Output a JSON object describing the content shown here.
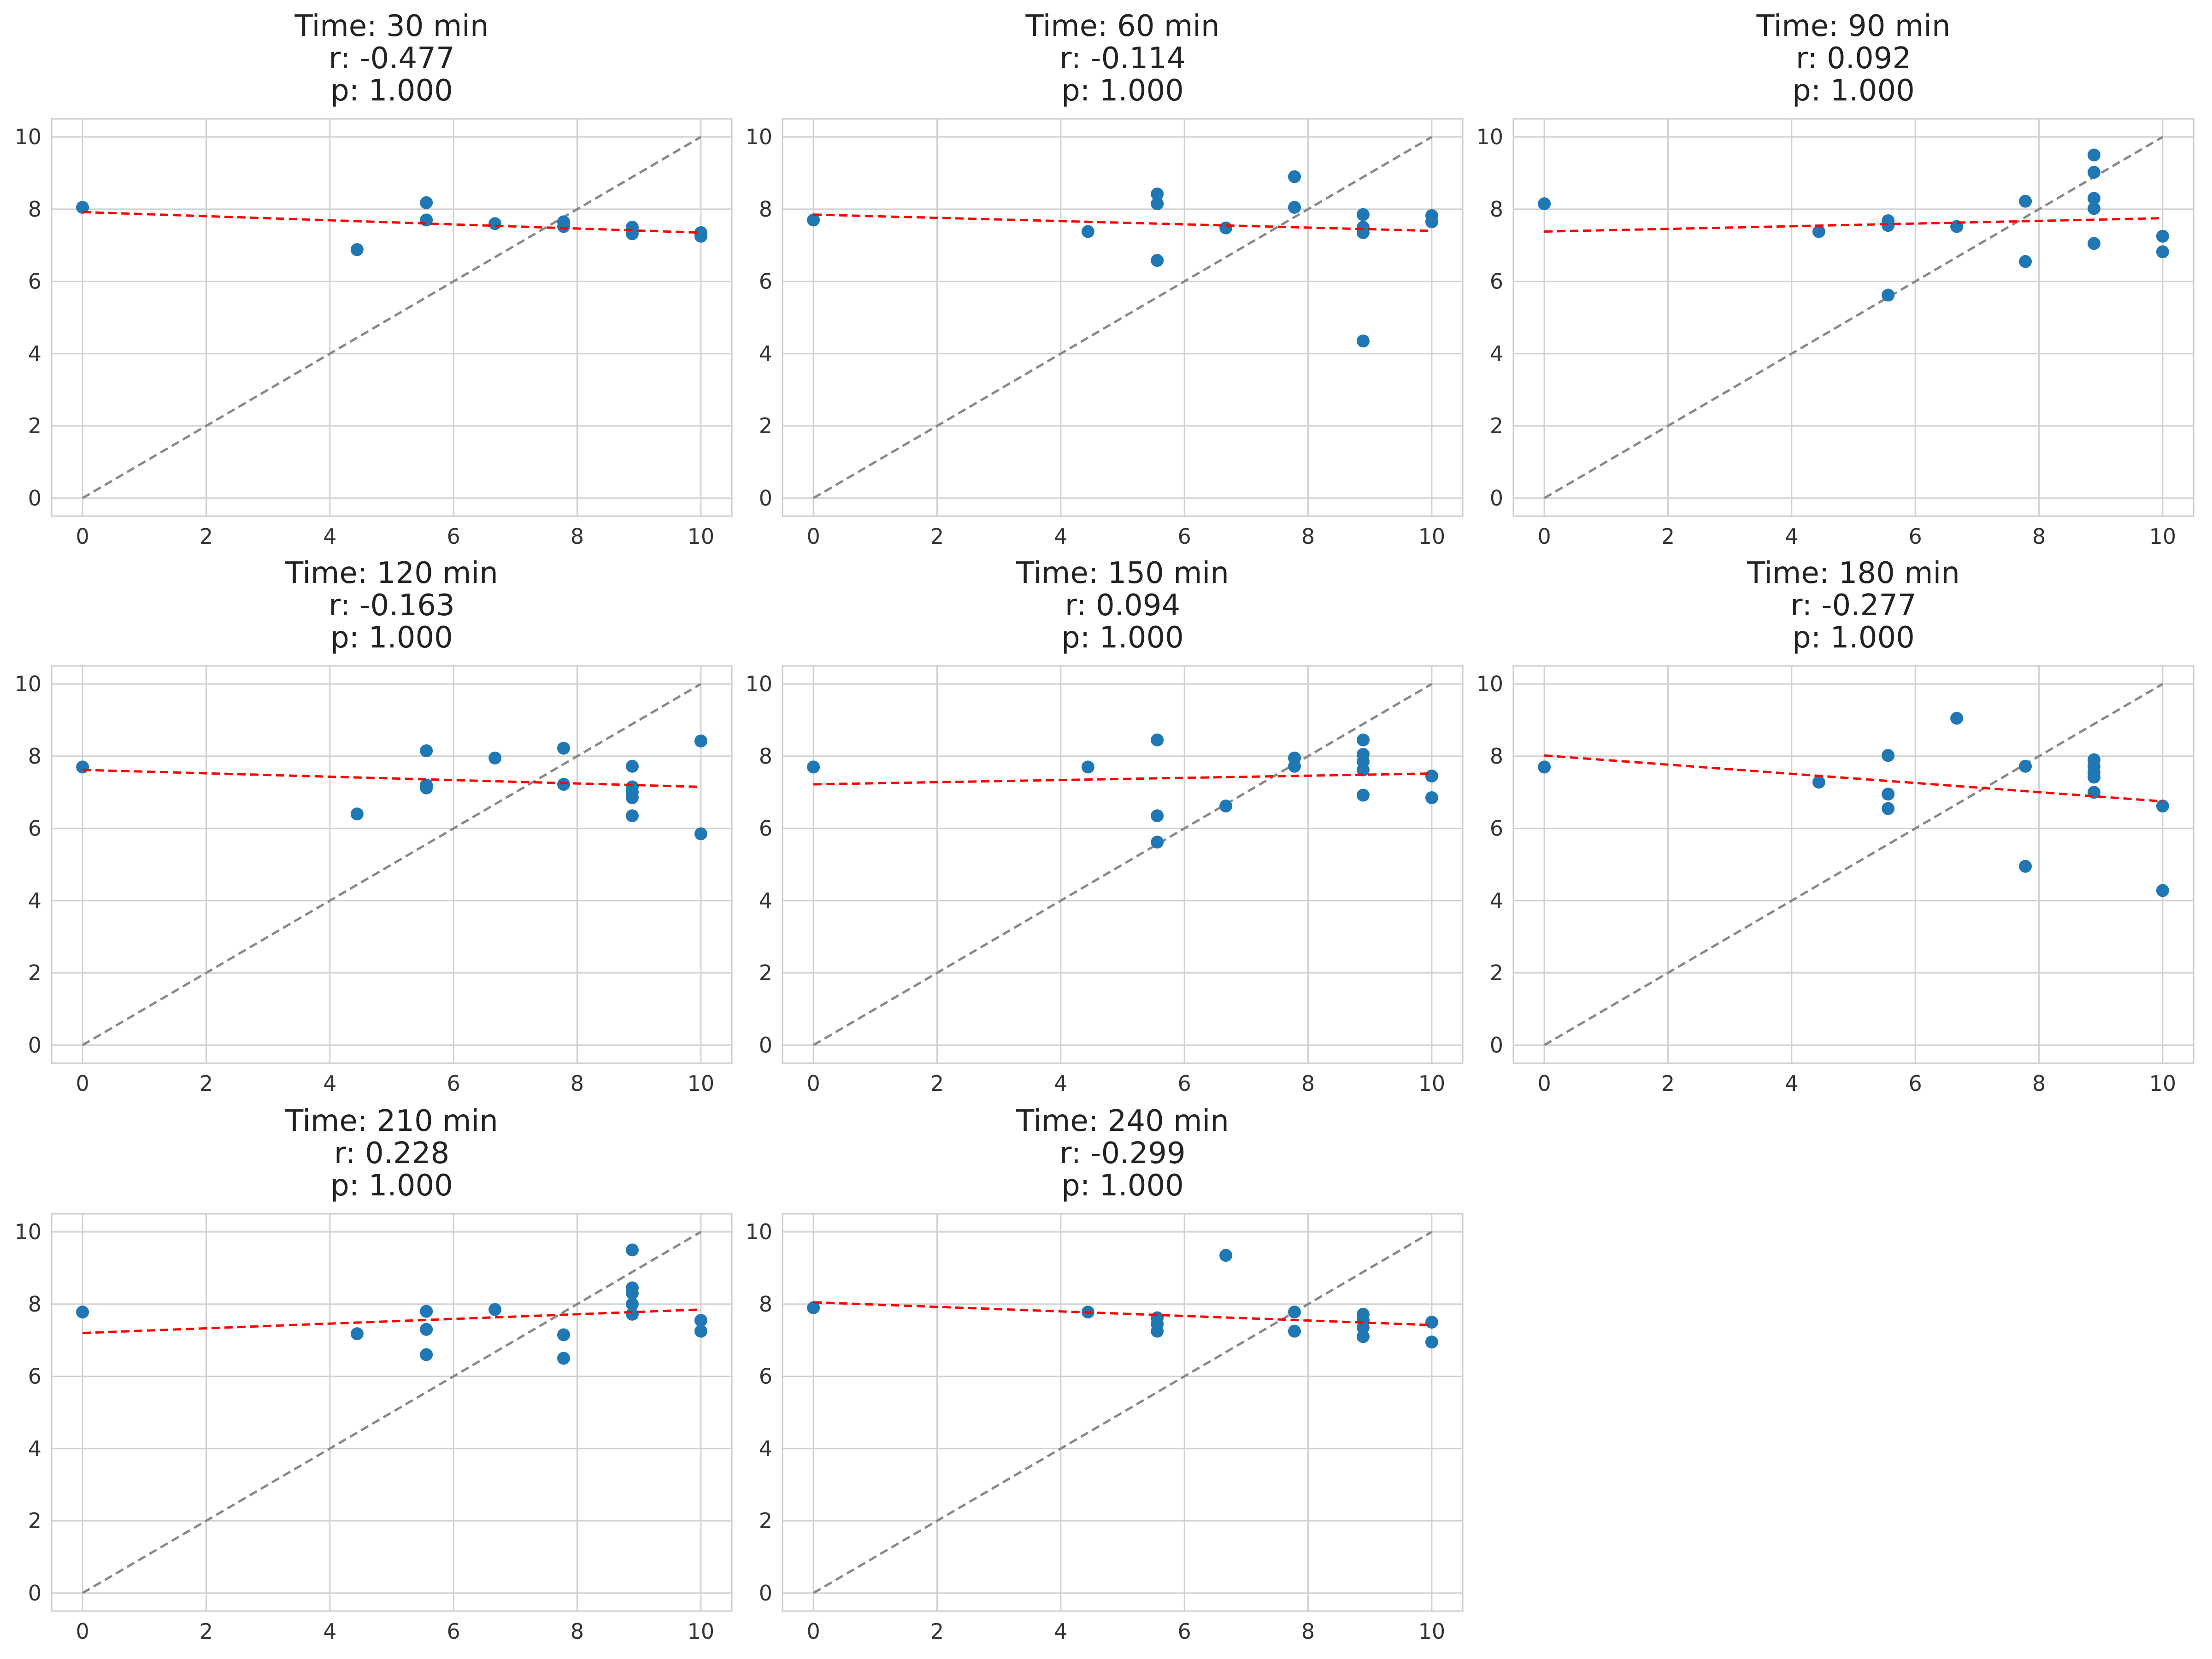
{
  "chart_data": [
    {
      "type": "scatter",
      "title_lines": [
        "Time: 30 min",
        "r: -0.477",
        "p: 1.000"
      ],
      "xlim": [
        -0.5,
        10.5
      ],
      "ylim": [
        -0.5,
        10.5
      ],
      "xticks": [
        0,
        2,
        4,
        6,
        8,
        10
      ],
      "yticks": [
        0,
        2,
        4,
        6,
        8,
        10
      ],
      "grid": true,
      "points": [
        [
          0,
          8.05
        ],
        [
          4.44,
          6.88
        ],
        [
          5.56,
          8.18
        ],
        [
          5.56,
          7.7
        ],
        [
          6.67,
          7.6
        ],
        [
          7.78,
          7.65
        ],
        [
          7.78,
          7.52
        ],
        [
          8.89,
          7.5
        ],
        [
          8.89,
          7.32
        ],
        [
          10,
          7.35
        ],
        [
          10,
          7.25
        ]
      ],
      "fit_line": [
        [
          0,
          7.92
        ],
        [
          10,
          7.35
        ]
      ],
      "identity_line": [
        [
          0,
          0
        ],
        [
          10,
          10
        ]
      ]
    },
    {
      "type": "scatter",
      "title_lines": [
        "Time: 60 min",
        "r: -0.114",
        "p: 1.000"
      ],
      "xlim": [
        -0.5,
        10.5
      ],
      "ylim": [
        -0.5,
        10.5
      ],
      "xticks": [
        0,
        2,
        4,
        6,
        8,
        10
      ],
      "yticks": [
        0,
        2,
        4,
        6,
        8,
        10
      ],
      "grid": true,
      "points": [
        [
          0,
          7.7
        ],
        [
          4.44,
          7.38
        ],
        [
          5.56,
          8.42
        ],
        [
          5.56,
          8.15
        ],
        [
          5.56,
          6.58
        ],
        [
          6.67,
          7.48
        ],
        [
          7.78,
          8.9
        ],
        [
          7.78,
          8.05
        ],
        [
          8.89,
          7.85
        ],
        [
          8.89,
          7.5
        ],
        [
          8.89,
          7.35
        ],
        [
          8.89,
          4.35
        ],
        [
          10,
          7.82
        ],
        [
          10,
          7.65
        ]
      ],
      "fit_line": [
        [
          0,
          7.85
        ],
        [
          10,
          7.4
        ]
      ],
      "identity_line": [
        [
          0,
          0
        ],
        [
          10,
          10
        ]
      ]
    },
    {
      "type": "scatter",
      "title_lines": [
        "Time: 90 min",
        "r: 0.092",
        "p: 1.000"
      ],
      "xlim": [
        -0.5,
        10.5
      ],
      "ylim": [
        -0.5,
        10.5
      ],
      "xticks": [
        0,
        2,
        4,
        6,
        8,
        10
      ],
      "yticks": [
        0,
        2,
        4,
        6,
        8,
        10
      ],
      "grid": true,
      "points": [
        [
          0,
          8.15
        ],
        [
          4.44,
          7.38
        ],
        [
          5.56,
          7.68
        ],
        [
          5.56,
          7.55
        ],
        [
          5.56,
          5.62
        ],
        [
          6.67,
          7.52
        ],
        [
          7.78,
          8.22
        ],
        [
          7.78,
          6.55
        ],
        [
          8.89,
          9.5
        ],
        [
          8.89,
          9.02
        ],
        [
          8.89,
          8.3
        ],
        [
          8.89,
          8.02
        ],
        [
          8.89,
          7.05
        ],
        [
          10,
          7.25
        ],
        [
          10,
          6.82
        ]
      ],
      "fit_line": [
        [
          0,
          7.38
        ],
        [
          10,
          7.75
        ]
      ],
      "identity_line": [
        [
          0,
          0
        ],
        [
          10,
          10
        ]
      ]
    },
    {
      "type": "scatter",
      "title_lines": [
        "Time: 120 min",
        "r: -0.163",
        "p: 1.000"
      ],
      "xlim": [
        -0.5,
        10.5
      ],
      "ylim": [
        -0.5,
        10.5
      ],
      "xticks": [
        0,
        2,
        4,
        6,
        8,
        10
      ],
      "yticks": [
        0,
        2,
        4,
        6,
        8,
        10
      ],
      "grid": true,
      "points": [
        [
          0,
          7.7
        ],
        [
          4.44,
          6.4
        ],
        [
          5.56,
          8.15
        ],
        [
          5.56,
          7.2
        ],
        [
          5.56,
          7.12
        ],
        [
          6.67,
          7.95
        ],
        [
          7.78,
          8.22
        ],
        [
          7.78,
          7.22
        ],
        [
          8.89,
          7.72
        ],
        [
          8.89,
          7.15
        ],
        [
          8.89,
          7.0
        ],
        [
          8.89,
          6.85
        ],
        [
          8.89,
          6.35
        ],
        [
          10,
          8.42
        ],
        [
          10,
          5.85
        ]
      ],
      "fit_line": [
        [
          0,
          7.62
        ],
        [
          10,
          7.15
        ]
      ],
      "identity_line": [
        [
          0,
          0
        ],
        [
          10,
          10
        ]
      ]
    },
    {
      "type": "scatter",
      "title_lines": [
        "Time: 150 min",
        "r: 0.094",
        "p: 1.000"
      ],
      "xlim": [
        -0.5,
        10.5
      ],
      "ylim": [
        -0.5,
        10.5
      ],
      "xticks": [
        0,
        2,
        4,
        6,
        8,
        10
      ],
      "yticks": [
        0,
        2,
        4,
        6,
        8,
        10
      ],
      "grid": true,
      "points": [
        [
          0,
          7.7
        ],
        [
          4.44,
          7.7
        ],
        [
          5.56,
          8.45
        ],
        [
          5.56,
          6.35
        ],
        [
          5.56,
          5.62
        ],
        [
          6.67,
          6.62
        ],
        [
          7.78,
          7.95
        ],
        [
          7.78,
          7.72
        ],
        [
          8.89,
          8.45
        ],
        [
          8.89,
          8.05
        ],
        [
          8.89,
          7.85
        ],
        [
          8.89,
          7.62
        ],
        [
          8.89,
          6.92
        ],
        [
          10,
          7.45
        ],
        [
          10,
          6.85
        ]
      ],
      "fit_line": [
        [
          0,
          7.22
        ],
        [
          10,
          7.52
        ]
      ],
      "identity_line": [
        [
          0,
          0
        ],
        [
          10,
          10
        ]
      ]
    },
    {
      "type": "scatter",
      "title_lines": [
        "Time: 180 min",
        "r: -0.277",
        "p: 1.000"
      ],
      "xlim": [
        -0.5,
        10.5
      ],
      "ylim": [
        -0.5,
        10.5
      ],
      "xticks": [
        0,
        2,
        4,
        6,
        8,
        10
      ],
      "yticks": [
        0,
        2,
        4,
        6,
        8,
        10
      ],
      "grid": true,
      "points": [
        [
          0,
          7.7
        ],
        [
          4.44,
          7.28
        ],
        [
          5.56,
          8.02
        ],
        [
          5.56,
          6.95
        ],
        [
          5.56,
          6.55
        ],
        [
          6.67,
          9.05
        ],
        [
          7.78,
          7.72
        ],
        [
          7.78,
          4.95
        ],
        [
          8.89,
          7.9
        ],
        [
          8.89,
          7.72
        ],
        [
          8.89,
          7.55
        ],
        [
          8.89,
          7.42
        ],
        [
          8.89,
          7.0
        ],
        [
          10,
          6.62
        ],
        [
          10,
          4.28
        ]
      ],
      "fit_line": [
        [
          0,
          8.02
        ],
        [
          10,
          6.75
        ]
      ],
      "identity_line": [
        [
          0,
          0
        ],
        [
          10,
          10
        ]
      ]
    },
    {
      "type": "scatter",
      "title_lines": [
        "Time: 210 min",
        "r: 0.228",
        "p: 1.000"
      ],
      "xlim": [
        -0.5,
        10.5
      ],
      "ylim": [
        -0.5,
        10.5
      ],
      "xticks": [
        0,
        2,
        4,
        6,
        8,
        10
      ],
      "yticks": [
        0,
        2,
        4,
        6,
        8,
        10
      ],
      "grid": true,
      "points": [
        [
          0,
          7.78
        ],
        [
          4.44,
          7.18
        ],
        [
          5.56,
          7.8
        ],
        [
          5.56,
          7.3
        ],
        [
          5.56,
          6.6
        ],
        [
          6.67,
          7.85
        ],
        [
          7.78,
          7.15
        ],
        [
          7.78,
          6.5
        ],
        [
          8.89,
          9.5
        ],
        [
          8.89,
          8.45
        ],
        [
          8.89,
          8.3
        ],
        [
          8.89,
          8.0
        ],
        [
          8.89,
          7.72
        ],
        [
          10,
          7.55
        ],
        [
          10,
          7.25
        ]
      ],
      "fit_line": [
        [
          0,
          7.2
        ],
        [
          10,
          7.85
        ]
      ],
      "identity_line": [
        [
          0,
          0
        ],
        [
          10,
          10
        ]
      ]
    },
    {
      "type": "scatter",
      "title_lines": [
        "Time: 240 min",
        "r: -0.299",
        "p: 1.000"
      ],
      "xlim": [
        -0.5,
        10.5
      ],
      "ylim": [
        -0.5,
        10.5
      ],
      "xticks": [
        0,
        2,
        4,
        6,
        8,
        10
      ],
      "yticks": [
        0,
        2,
        4,
        6,
        8,
        10
      ],
      "grid": true,
      "points": [
        [
          0,
          7.9
        ],
        [
          4.44,
          7.78
        ],
        [
          5.56,
          7.62
        ],
        [
          5.56,
          7.45
        ],
        [
          5.56,
          7.25
        ],
        [
          6.67,
          9.35
        ],
        [
          7.78,
          7.78
        ],
        [
          7.78,
          7.25
        ],
        [
          8.89,
          7.72
        ],
        [
          8.89,
          7.55
        ],
        [
          8.89,
          7.35
        ],
        [
          8.89,
          7.1
        ],
        [
          10,
          7.5
        ],
        [
          10,
          6.95
        ]
      ],
      "fit_line": [
        [
          0,
          8.05
        ],
        [
          10,
          7.42
        ]
      ],
      "identity_line": [
        [
          0,
          0
        ],
        [
          10,
          10
        ]
      ]
    }
  ],
  "colors": {
    "points": "#1f77b4",
    "fit_line": "#ff0000",
    "identity_line": "#888888",
    "grid": "#d0d0d0",
    "frame": "#cccccc"
  }
}
